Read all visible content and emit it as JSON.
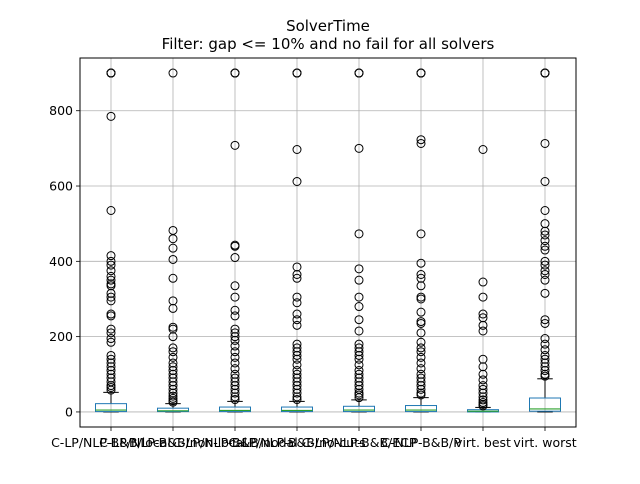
{
  "chart_data": {
    "type": "box",
    "title": "SolverTime",
    "subtitle": "Filter: gap <= 10% and no fail for all solvers",
    "xlabel": "",
    "ylabel": "",
    "ylim": [
      -40,
      940
    ],
    "yticks": [
      0,
      200,
      400,
      600,
      800
    ],
    "grid": true,
    "categories": [
      "C-LP/NLP-B&B/local",
      "C-LP/NLP-B&B/non-local",
      "C-LP/NLP-B&B/nodal",
      "C-LP/NLP-B&B/no-cuts",
      "C-LP/NLP-B&B/ECP",
      "C-NLP-B&B/P",
      "virt. best",
      "virt. worst"
    ],
    "boxes": [
      {
        "name": "C-LP/NLP-B&B/local",
        "q1": 1,
        "median": 5,
        "q3": 22,
        "whisker_low": 0,
        "whisker_high": 52,
        "outliers": [
          900,
          900,
          900,
          900,
          785,
          535,
          415,
          400,
          390,
          375,
          360,
          350,
          340,
          335,
          315,
          305,
          295,
          260,
          255,
          220,
          210,
          195,
          185,
          150,
          140,
          130,
          120,
          110,
          100,
          90,
          80,
          70,
          65,
          58
        ]
      },
      {
        "name": "C-LP/NLP-B&B/non-local",
        "q1": 1,
        "median": 3,
        "q3": 10,
        "whisker_low": 0,
        "whisker_high": 22,
        "outliers": [
          900,
          482,
          460,
          435,
          405,
          355,
          295,
          275,
          225,
          220,
          200,
          170,
          160,
          145,
          130,
          120,
          110,
          100,
          90,
          80,
          70,
          60,
          50,
          42,
          36,
          30,
          26
        ]
      },
      {
        "name": "C-LP/NLP-B&B/nodal",
        "q1": 1,
        "median": 4,
        "q3": 13,
        "whisker_low": 0,
        "whisker_high": 28,
        "outliers": [
          900,
          900,
          900,
          708,
          443,
          440,
          410,
          335,
          305,
          270,
          255,
          220,
          210,
          200,
          190,
          175,
          160,
          145,
          130,
          115,
          100,
          90,
          80,
          70,
          60,
          50,
          40,
          33
        ]
      },
      {
        "name": "C-LP/NLP-B&B/no-cuts",
        "q1": 1,
        "median": 4,
        "q3": 13,
        "whisker_low": 0,
        "whisker_high": 28,
        "outliers": [
          900,
          900,
          900,
          697,
          612,
          385,
          365,
          355,
          305,
          290,
          260,
          245,
          230,
          180,
          170,
          160,
          150,
          140,
          125,
          110,
          100,
          90,
          80,
          70,
          60,
          50,
          40,
          33
        ]
      },
      {
        "name": "C-LP/NLP-B&B/ECP",
        "q1": 1,
        "median": 5,
        "q3": 15,
        "whisker_low": 0,
        "whisker_high": 32,
        "outliers": [
          900,
          900,
          900,
          700,
          473,
          380,
          350,
          305,
          280,
          245,
          215,
          180,
          170,
          160,
          150,
          140,
          125,
          110,
          100,
          90,
          80,
          70,
          60,
          50,
          45,
          38
        ]
      },
      {
        "name": "C-NLP-B&B/P",
        "q1": 1,
        "median": 5,
        "q3": 17,
        "whisker_low": 0,
        "whisker_high": 38,
        "outliers": [
          900,
          900,
          900,
          723,
          713,
          473,
          395,
          365,
          355,
          335,
          305,
          300,
          265,
          240,
          235,
          210,
          185,
          170,
          160,
          145,
          130,
          115,
          100,
          90,
          80,
          70,
          60,
          50,
          45
        ]
      },
      {
        "name": "virt. best",
        "q1": 0,
        "median": 2,
        "q3": 6,
        "whisker_low": 0,
        "whisker_high": 12,
        "outliers": [
          697,
          345,
          305,
          260,
          250,
          230,
          215,
          140,
          120,
          100,
          85,
          70,
          60,
          50,
          40,
          32,
          25,
          20,
          16
        ]
      },
      {
        "name": "virt. worst",
        "q1": 2,
        "median": 8,
        "q3": 37,
        "whisker_low": 0,
        "whisker_high": 88,
        "outliers": [
          900,
          900,
          900,
          900,
          713,
          612,
          535,
          500,
          480,
          470,
          455,
          440,
          430,
          400,
          390,
          375,
          365,
          350,
          315,
          245,
          235,
          195,
          180,
          165,
          150,
          140,
          130,
          120,
          110,
          100,
          95
        ]
      }
    ]
  }
}
